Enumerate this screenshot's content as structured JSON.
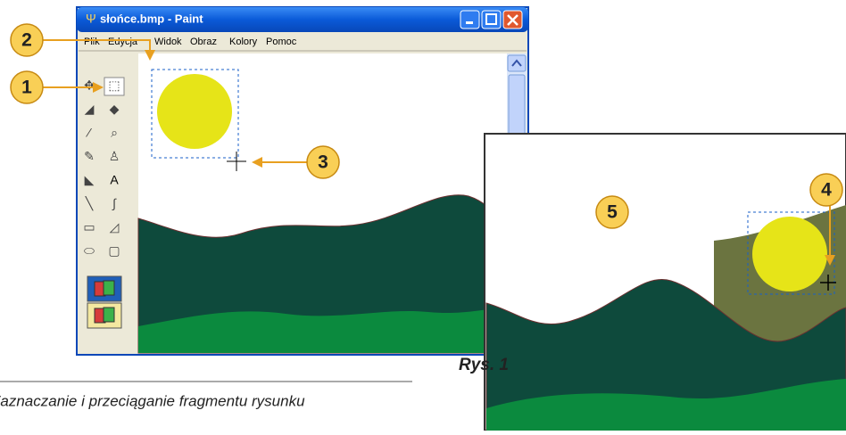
{
  "window": {
    "title": "słońce.bmp - Paint",
    "menu": [
      "Plik",
      "Edycja",
      "Widok",
      "Obraz",
      "Kolory",
      "Pomoc"
    ]
  },
  "callouts": [
    "1",
    "2",
    "3",
    "4",
    "5"
  ],
  "figure": {
    "label": "Rys. 1",
    "caption": "Zaznaczanie i przeciąganie fragmentu rysunku"
  }
}
